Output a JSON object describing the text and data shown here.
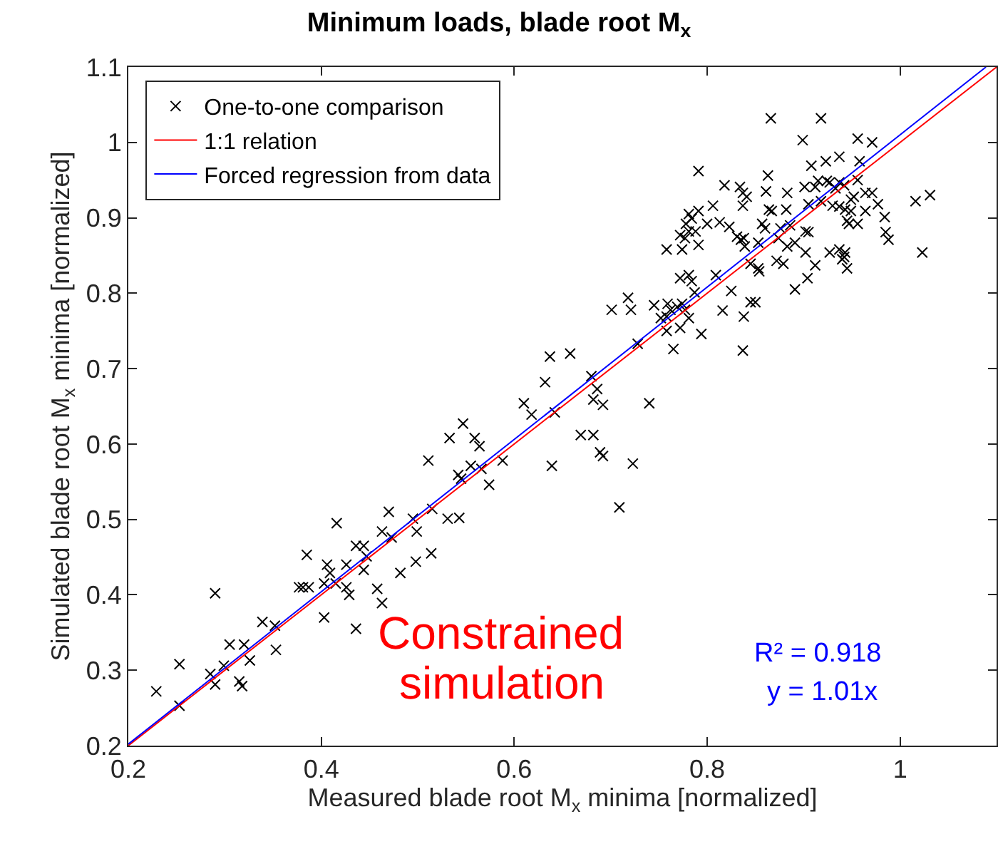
{
  "chart_data": {
    "type": "scatter",
    "title": "Minimum loads, blade root M$_{x}$",
    "xlabel": "Measured blade root M$_{x}$ minima [normalized]",
    "ylabel": "Simulated blade root M$_{x}$ minima [normalized]",
    "xlim": [
      0.2,
      1.1
    ],
    "xticks": [
      0.2,
      0.4,
      0.6,
      0.8,
      1
    ],
    "ylim": [
      0.2,
      1.1
    ],
    "yticks": [
      0.2,
      0.3,
      0.4,
      0.5,
      0.6,
      0.7,
      0.8,
      0.9,
      1,
      1.1
    ],
    "grid": false,
    "legend": "top left",
    "marker": "cross",
    "annotations": [
      "Constrained",
      "simulation",
      "R² = 0.918",
      "y = 1.01x"
    ],
    "series": [
      {
        "name": "One-to-one comparison",
        "color": "#000000",
        "x": [
          0.229,
          0.253,
          0.253,
          0.29,
          0.285,
          0.29,
          0.299,
          0.305,
          0.32,
          0.315,
          0.318,
          0.326,
          0.339,
          0.352,
          0.353,
          0.385,
          0.377,
          0.381,
          0.387,
          0.403,
          0.403,
          0.406,
          0.409,
          0.415,
          0.416,
          0.426,
          0.426,
          0.429,
          0.436,
          0.436,
          0.444,
          0.447,
          0.444,
          0.458,
          0.463,
          0.463,
          0.47,
          0.473,
          0.482,
          0.495,
          0.499,
          0.498,
          0.514,
          0.515,
          0.511,
          0.531,
          0.543,
          0.533,
          0.542,
          0.545,
          0.555,
          0.559,
          0.564,
          0.566,
          0.574,
          0.547,
          0.588,
          0.61,
          0.618,
          0.632,
          0.637,
          0.658,
          0.642,
          0.639,
          0.669,
          0.682,
          0.68,
          0.686,
          0.682,
          0.692,
          0.689,
          0.692,
          0.709,
          0.723,
          0.74,
          0.701,
          0.718,
          0.721,
          0.728,
          0.745,
          0.759,
          0.762,
          0.752,
          0.758,
          0.765,
          0.758,
          0.772,
          0.781,
          0.794,
          0.772,
          0.781,
          0.784,
          0.787,
          0.809,
          0.816,
          0.825,
          0.769,
          0.774,
          0.777,
          0.866,
          0.918,
          0.899,
          0.956,
          0.971,
          0.791,
          0.863,
          0.908,
          0.923,
          0.937,
          0.958,
          0.818,
          0.834,
          0.837,
          0.841,
          0.861,
          0.883,
          0.901,
          0.912,
          0.915,
          0.924,
          0.927,
          0.933,
          0.937,
          0.942,
          0.956,
          0.964,
          0.971,
          0.952,
          0.949,
          1.016,
          1.031,
          0.806,
          0.837,
          0.864,
          0.867,
          0.882,
          0.905,
          0.918,
          0.93,
          0.937,
          0.943,
          0.977,
          0.984,
          0.781,
          0.791,
          0.784,
          0.778,
          0.8,
          0.813,
          0.823,
          0.831,
          0.835,
          0.838,
          0.857,
          0.86,
          0.876,
          0.874,
          0.886,
          0.902,
          0.905,
          0.945,
          0.947,
          0.949,
          0.956,
          0.964,
          0.772,
          0.777,
          0.781,
          0.788,
          0.758,
          0.774,
          0.791,
          0.839,
          0.853,
          0.883,
          0.891,
          0.902,
          0.927,
          0.937,
          0.943,
          0.942,
          0.94,
          0.945,
          0.912,
          0.904,
          0.891,
          0.985,
          0.988,
          1.023,
          0.872,
          0.879,
          0.845,
          0.853,
          0.854,
          0.845,
          0.85,
          0.838,
          0.837
        ],
        "values": [
          0.272,
          0.308,
          0.253,
          0.402,
          0.295,
          0.281,
          0.306,
          0.334,
          0.334,
          0.285,
          0.279,
          0.313,
          0.364,
          0.359,
          0.327,
          0.453,
          0.41,
          0.41,
          0.41,
          0.37,
          0.415,
          0.44,
          0.429,
          0.415,
          0.495,
          0.44,
          0.41,
          0.4,
          0.355,
          0.465,
          0.465,
          0.451,
          0.433,
          0.408,
          0.389,
          0.484,
          0.51,
          0.476,
          0.429,
          0.501,
          0.484,
          0.444,
          0.455,
          0.514,
          0.578,
          0.501,
          0.502,
          0.608,
          0.559,
          0.554,
          0.571,
          0.608,
          0.597,
          0.567,
          0.546,
          0.627,
          0.578,
          0.654,
          0.639,
          0.682,
          0.716,
          0.72,
          0.642,
          0.571,
          0.612,
          0.612,
          0.69,
          0.673,
          0.659,
          0.652,
          0.589,
          0.584,
          0.516,
          0.574,
          0.654,
          0.778,
          0.794,
          0.778,
          0.733,
          0.784,
          0.786,
          0.778,
          0.767,
          0.769,
          0.726,
          0.75,
          0.754,
          0.767,
          0.746,
          0.82,
          0.824,
          0.816,
          0.801,
          0.824,
          0.777,
          0.803,
          0.782,
          0.786,
          0.778,
          1.032,
          1.032,
          1.003,
          1.005,
          1.0,
          0.962,
          0.956,
          0.969,
          0.975,
          0.981,
          0.975,
          0.943,
          0.941,
          0.933,
          0.928,
          0.935,
          0.933,
          0.941,
          0.941,
          0.949,
          0.949,
          0.947,
          0.939,
          0.947,
          0.943,
          0.95,
          0.933,
          0.933,
          0.928,
          0.924,
          0.922,
          0.93,
          0.916,
          0.916,
          0.911,
          0.909,
          0.911,
          0.918,
          0.922,
          0.916,
          0.915,
          0.911,
          0.918,
          0.901,
          0.905,
          0.909,
          0.899,
          0.892,
          0.892,
          0.894,
          0.888,
          0.875,
          0.871,
          0.873,
          0.892,
          0.886,
          0.886,
          0.873,
          0.89,
          0.882,
          0.881,
          0.896,
          0.892,
          0.909,
          0.892,
          0.909,
          0.877,
          0.873,
          0.882,
          0.882,
          0.858,
          0.858,
          0.864,
          0.862,
          0.867,
          0.862,
          0.867,
          0.854,
          0.854,
          0.858,
          0.854,
          0.848,
          0.845,
          0.833,
          0.837,
          0.82,
          0.805,
          0.881,
          0.871,
          0.854,
          0.843,
          0.839,
          0.839,
          0.833,
          0.829,
          0.788,
          0.788,
          0.769,
          0.724
        ]
      },
      {
        "name": "1:1 relation",
        "color": "#ff0000",
        "type": "line",
        "marker": "none",
        "x": [
          0.2,
          1.1
        ],
        "values": [
          0.2,
          1.1
        ]
      },
      {
        "name": "Forced regression from data",
        "color": "#0000ff",
        "type": "line",
        "marker": "none",
        "x": [
          0.2,
          1.089
        ],
        "values": [
          0.202,
          1.1
        ]
      }
    ]
  }
}
